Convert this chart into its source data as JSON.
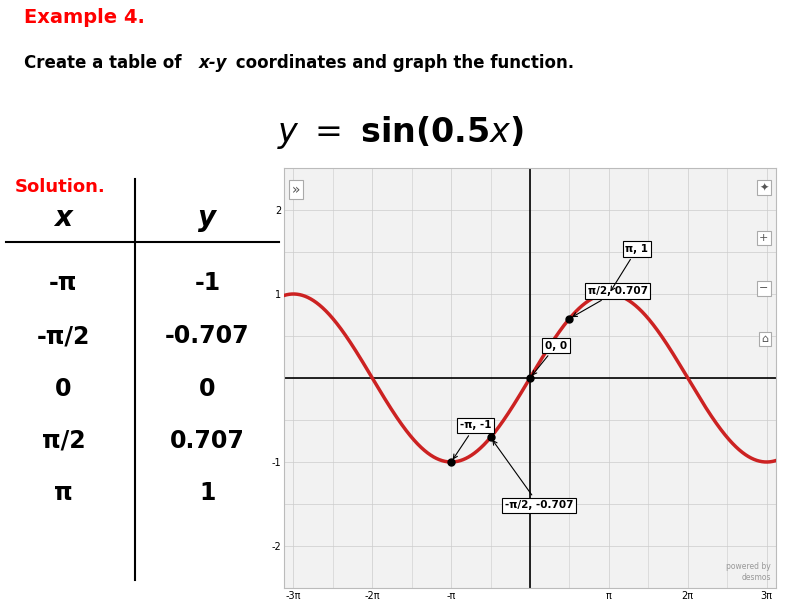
{
  "title_example": "Example 4.",
  "title_example_color": "#FF0000",
  "subtitle_plain1": "Create a table of ",
  "subtitle_italic": "x-y",
  "subtitle_plain2": " coordinates and graph the function.",
  "solution_label": "Solution.",
  "solution_color": "#FF0000",
  "table_x_label": "x",
  "table_y_label": "y",
  "table_rows": [
    [
      "-π",
      "-1"
    ],
    [
      "-π/2",
      "-0.707"
    ],
    [
      "0",
      "0"
    ],
    [
      "π/2",
      "0.707"
    ],
    [
      "π",
      "1"
    ]
  ],
  "graph_xlim": [
    -9.8,
    9.8
  ],
  "graph_ylim": [
    -2.5,
    2.5
  ],
  "curve_color": "#CC2222",
  "grid_color": "#CCCCCC",
  "bg_color": "#F2F2F2",
  "background_color": "#FFFFFF"
}
